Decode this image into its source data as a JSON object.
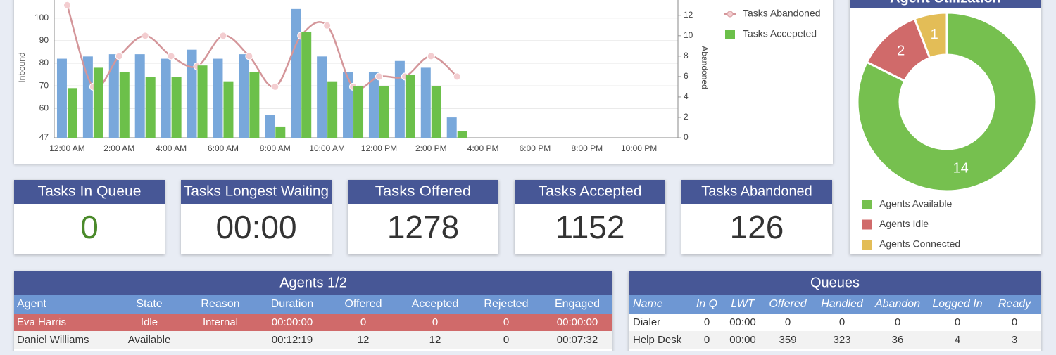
{
  "chart_data": [
    {
      "type": "bar",
      "y_label": "Inbound",
      "y2_label": "Abandoned",
      "categories": [
        "12:00 AM",
        null,
        "2:00 AM",
        null,
        "4:00 AM",
        null,
        "6:00 AM",
        null,
        "8:00 AM",
        null,
        "10:00 AM",
        null,
        "12:00 PM",
        null,
        "2:00 PM",
        null,
        "4:00 PM",
        null,
        "6:00 PM",
        null,
        "8:00 PM",
        null,
        "10:00 PM",
        null
      ],
      "series": [
        {
          "color": "#79a8db",
          "values": [
            82,
            83,
            84,
            84,
            82,
            86,
            82,
            84,
            57,
            104,
            83,
            76,
            76,
            81,
            78,
            56,
            null,
            null,
            null,
            null,
            null,
            null,
            null,
            null
          ]
        },
        {
          "name": "Tasks Abandoned",
          "type": "line",
          "axis": "y2",
          "color": "#d4969a",
          "values": [
            13,
            5,
            8,
            10,
            8,
            7,
            10,
            8,
            5,
            10,
            11,
            5,
            6,
            6,
            8,
            6,
            null,
            null,
            null,
            null,
            null,
            null,
            null,
            null
          ]
        },
        {
          "name": "Tasks Accepeted",
          "color": "#6cc04a",
          "values": [
            69,
            78,
            76,
            74,
            74,
            79,
            72,
            76,
            52,
            94,
            72,
            70,
            70,
            75,
            70,
            50,
            null,
            null,
            null,
            null,
            null,
            null,
            null,
            null
          ]
        }
      ],
      "ylim": [
        47,
        108
      ],
      "yticks": [
        47,
        60,
        70,
        80,
        90,
        100
      ],
      "y2lim": [
        0,
        13.5
      ],
      "y2ticks": [
        0,
        2,
        4,
        6,
        8,
        10,
        12
      ],
      "grid": true,
      "legend": "right"
    },
    {
      "type": "donut",
      "title": "Agent Utilization",
      "categories": [
        "Agents Available",
        "Agents Idle",
        "Agents Connected"
      ],
      "values": [
        14,
        2,
        1
      ],
      "colors": [
        "#76c04f",
        "#d06a6a",
        "#e3bd57"
      ],
      "legend": "bottom"
    }
  ],
  "kpis": [
    {
      "title": "Tasks In Queue",
      "value": "0"
    },
    {
      "title": "Tasks Longest Waiting",
      "value": "00:00"
    },
    {
      "title": "Tasks Offered",
      "value": "1278"
    },
    {
      "title": "Tasks Accepted",
      "value": "1152"
    },
    {
      "title": "Tasks Abandoned",
      "value": "126"
    }
  ],
  "agents": {
    "title": "Agents 1/2",
    "columns": [
      "Agent",
      "State",
      "Reason",
      "Duration",
      "Offered",
      "Accepted",
      "Rejected",
      "Engaged"
    ],
    "rows": [
      [
        "Eva Harris",
        "Idle",
        "Internal",
        "00:00:00",
        "0",
        "0",
        "0",
        "00:00:00"
      ],
      [
        "Daniel Williams",
        "Available",
        null,
        "00:12:19",
        "12",
        "12",
        "0",
        "00:07:32"
      ]
    ]
  },
  "queues": {
    "title": "Queues",
    "columns": [
      "Name",
      "In Q",
      "LWT",
      "Offered",
      "Handled",
      "Abandon",
      "Logged In",
      "Ready"
    ],
    "rows": [
      [
        "Dialer",
        "0",
        "00:00",
        "0",
        "0",
        "0",
        "0",
        "0"
      ],
      [
        "Help Desk",
        "0",
        "00:00",
        "359",
        "323",
        "36",
        "4",
        "3"
      ]
    ]
  }
}
